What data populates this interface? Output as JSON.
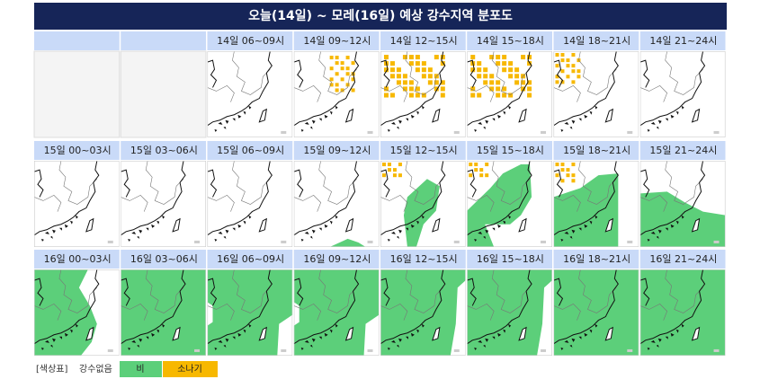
{
  "title": "오늘(14일) ~ 모레(16일) 예상 강수지역 분포도",
  "rows": [
    {
      "cells": [
        "14일 06~09시",
        "14일 09~12시",
        "14일 12~15시",
        "14일 15~18시",
        "14일 18~21시",
        "14일 21~24시"
      ]
    },
    {
      "cells": [
        "15일 00~03시",
        "15일 03~06시",
        "15일 06~09시",
        "15일 09~12시",
        "15일 12~15시",
        "15일 15~18시",
        "15일 18~21시",
        "15일 21~24시"
      ]
    },
    {
      "cells": [
        "16일 00~03시",
        "16일 03~06시",
        "16일 06~09시",
        "16일 09~12시",
        "16일 12~15시",
        "16일 15~18시",
        "16일 18~21시",
        "16일 21~24시"
      ]
    }
  ],
  "legend": {
    "label": "[색상표]",
    "items": [
      "강수없음",
      "비",
      "소나기"
    ]
  }
}
